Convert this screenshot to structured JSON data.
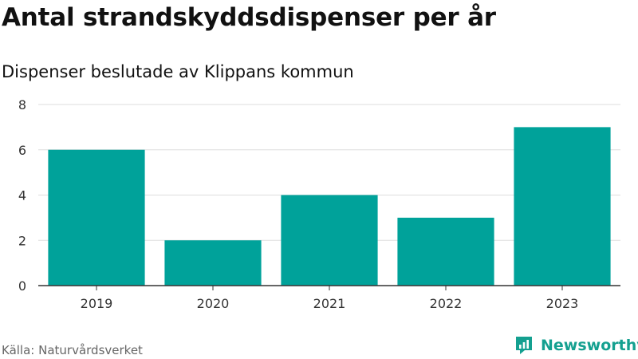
{
  "header": {
    "title": "Antal strandskyddsdispenser per år",
    "subtitle": "Dispenser beslutade av Klippans kommun"
  },
  "footer": {
    "source": "Källa: Naturvårdsverket",
    "brand": "Newsworthy",
    "brand_icon": "newsworthy-logo-icon"
  },
  "colors": {
    "bar": "#00a29a",
    "grid": "#dddddd",
    "axis": "#333333",
    "brand": "#14a090"
  },
  "chart_data": {
    "type": "bar",
    "categories": [
      "2019",
      "2020",
      "2021",
      "2022",
      "2023"
    ],
    "values": [
      6,
      2,
      4,
      3,
      7
    ],
    "ylim": [
      0,
      8
    ],
    "yticks": [
      0,
      2,
      4,
      6,
      8
    ],
    "grid": true,
    "title": "Antal strandskyddsdispenser per år",
    "subtitle": "Dispenser beslutade av Klippans kommun",
    "xlabel": "",
    "ylabel": ""
  }
}
